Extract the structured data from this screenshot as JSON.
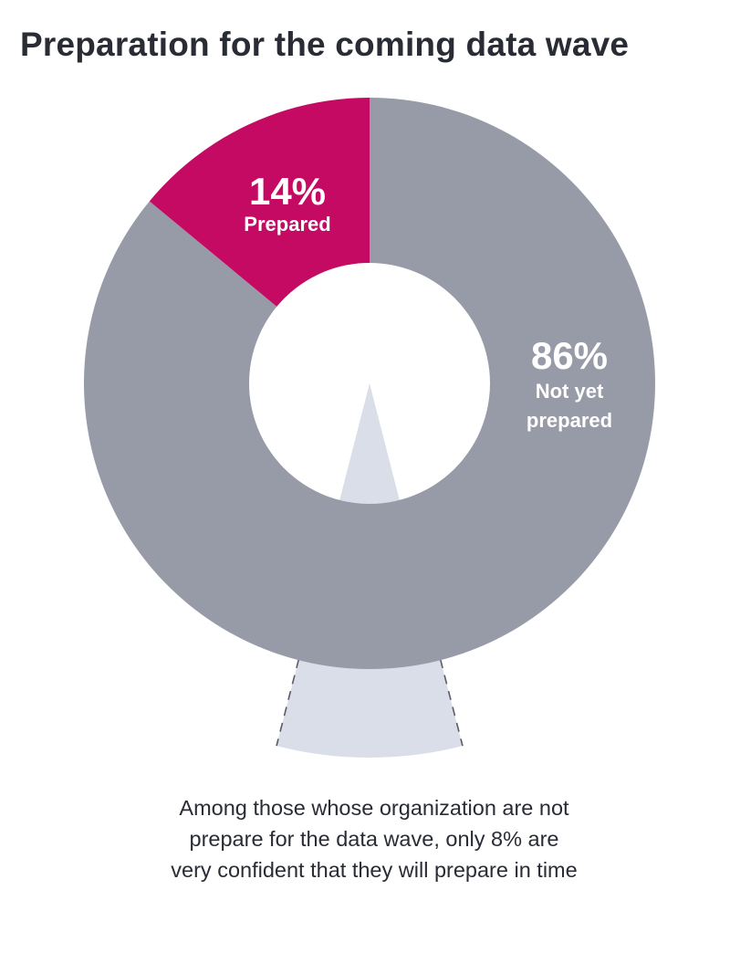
{
  "title": "Preparation for the coming data wave",
  "colors": {
    "prepared": "#c50a64",
    "not_yet_prepared": "#979ba8",
    "callout": "#d9dee8",
    "text": "#2a2c35"
  },
  "chart_data": {
    "type": "pie",
    "variant": "donut",
    "slices": [
      {
        "value_label": "14%",
        "value": 14,
        "label": "Prepared",
        "color": "#c50a64"
      },
      {
        "value_label": "86%",
        "value": 86,
        "label_lines": [
          "Not yet",
          "prepared"
        ],
        "color": "#979ba8"
      }
    ],
    "callout_sub_value": 8
  },
  "caption": {
    "lines": [
      "Among those whose organization are not",
      "prepare for the data wave, only 8% are",
      "very confident that they will prepare in time"
    ]
  }
}
